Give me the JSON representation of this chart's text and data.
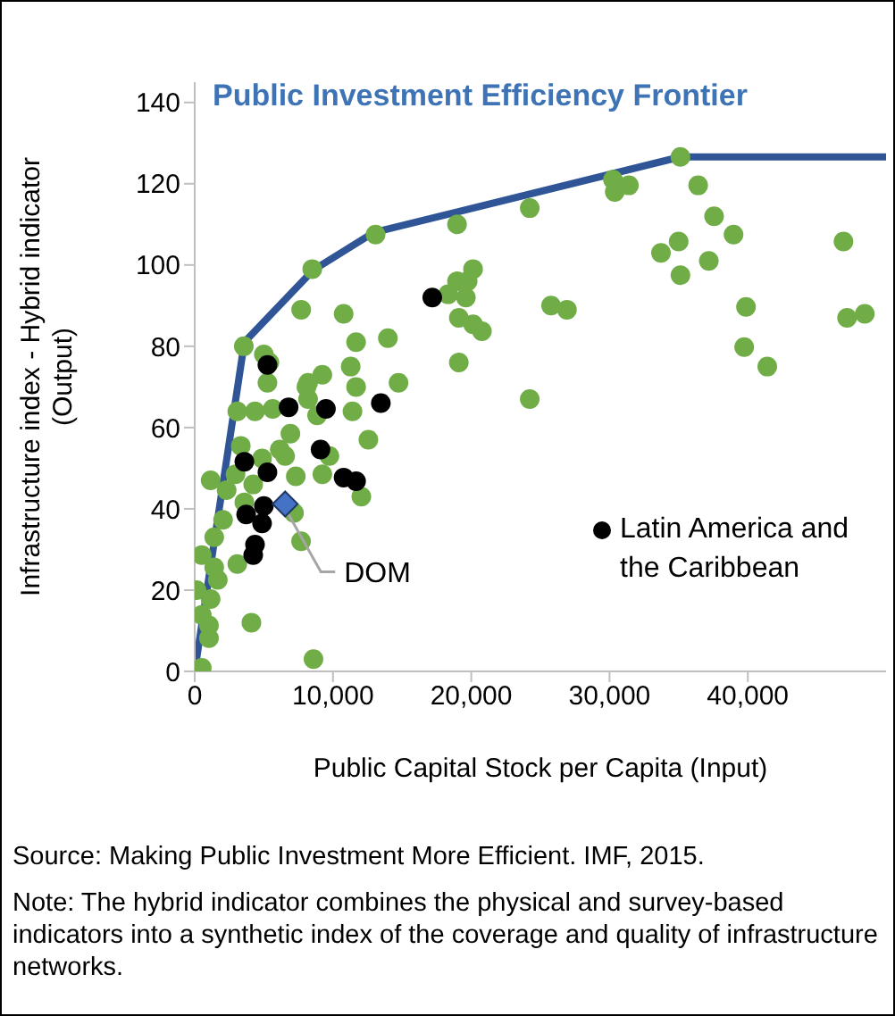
{
  "chart_data": {
    "type": "scatter",
    "title": "Public Investment Efficiency Frontier",
    "xlabel": "Public Capital Stock per Capita (Input)",
    "ylabel": "Infrastructure index - Hybrid indicator\n(Output)",
    "xlim": [
      0,
      50000
    ],
    "ylim": [
      0,
      145
    ],
    "xticks": [
      {
        "value": 0,
        "label": "0"
      },
      {
        "value": 10000,
        "label": "10,000"
      },
      {
        "value": 20000,
        "label": "20,000"
      },
      {
        "value": 30000,
        "label": "30,000"
      },
      {
        "value": 40000,
        "label": "40,000"
      }
    ],
    "yticks": [
      0,
      20,
      40,
      60,
      80,
      100,
      120,
      140
    ],
    "grid": false,
    "legend": "bottom right",
    "marker": "circle",
    "series": [
      {
        "type": "scatter",
        "color": "#70ad47",
        "x": [
          3550,
          5000,
          5400,
          5260,
          7700,
          8500,
          10770,
          11670,
          13970,
          11280,
          9230,
          8200,
          11670,
          14740,
          13080,
          18970,
          24230,
          30250,
          31400,
          30380,
          35130,
          36410,
          37560,
          38970,
          33720,
          35000,
          35130,
          37180,
          39870,
          39740,
          41410,
          46920,
          47180,
          48460,
          18330,
          18970,
          19740,
          20130,
          19610,
          19100,
          20130,
          20770,
          19100,
          25770,
          26920,
          24230,
          8080,
          3080,
          4360,
          5640,
          8200,
          8850,
          11410,
          6920,
          12560,
          3330,
          6150,
          4870,
          9740,
          6540,
          7310,
          9230,
          1150,
          2950,
          2310,
          4230,
          12050,
          3590,
          2050,
          1410,
          7180,
          7690,
          510,
          1670,
          3080,
          130,
          1150,
          510,
          1030,
          4100,
          510,
          8590,
          1410,
          1030
        ],
        "values": [
          80,
          78,
          76,
          71,
          89,
          99,
          88,
          81,
          82,
          75,
          73,
          71,
          70,
          71,
          107.5,
          110,
          114,
          121,
          119.6,
          118,
          126.6,
          119.6,
          112,
          107.5,
          103,
          105.8,
          97.5,
          101,
          89.7,
          79.8,
          75,
          105.8,
          87,
          88,
          92.8,
          96,
          96,
          99,
          92,
          87,
          85.4,
          83.7,
          76,
          90,
          89,
          67,
          70,
          64,
          64,
          64.6,
          67,
          63,
          64,
          58.5,
          57,
          55.5,
          54.6,
          52.4,
          53,
          53,
          48,
          48.5,
          47,
          48.5,
          44.6,
          46,
          43,
          41.6,
          37.3,
          33,
          39,
          32,
          28.6,
          22.5,
          26.4,
          20,
          17.8,
          13.9,
          8.2,
          12,
          0.9,
          3,
          25.6,
          11.3
        ]
      },
      {
        "type": "scatter",
        "name": "Latin America and the Caribbean",
        "color": "#000000",
        "x": [
          17180,
          5260,
          6790,
          9490,
          13460,
          9100,
          3590,
          5260,
          10770,
          11670,
          3720,
          5000,
          4870,
          4360,
          4230
        ],
        "values": [
          92,
          75.4,
          65,
          64.6,
          66,
          54.6,
          51.6,
          49,
          47.7,
          46.8,
          38.6,
          40.7,
          36.4,
          31.2,
          28.6
        ]
      },
      {
        "type": "scatter",
        "color": "#4472c4",
        "marker": "diamond",
        "x": [
          6540
        ],
        "values": [
          41.2
        ]
      },
      {
        "type": "line",
        "color": "#2f5597",
        "marker": "none",
        "x": [
          0,
          3590,
          8590,
          12950,
          35130,
          50000
        ],
        "values": [
          0,
          81,
          98.8,
          108,
          126.6,
          126.6
        ]
      }
    ],
    "annotations": [
      {
        "text": "DOM",
        "x": 6540,
        "y": 41.2
      },
      "Source: Making Public Investment More Efficient.  IMF, 2015.",
      "Note: The hybrid indicator combines the physical and survey-based indicators into a synthetic index of the coverage and quality of infrastructure networks."
    ]
  }
}
